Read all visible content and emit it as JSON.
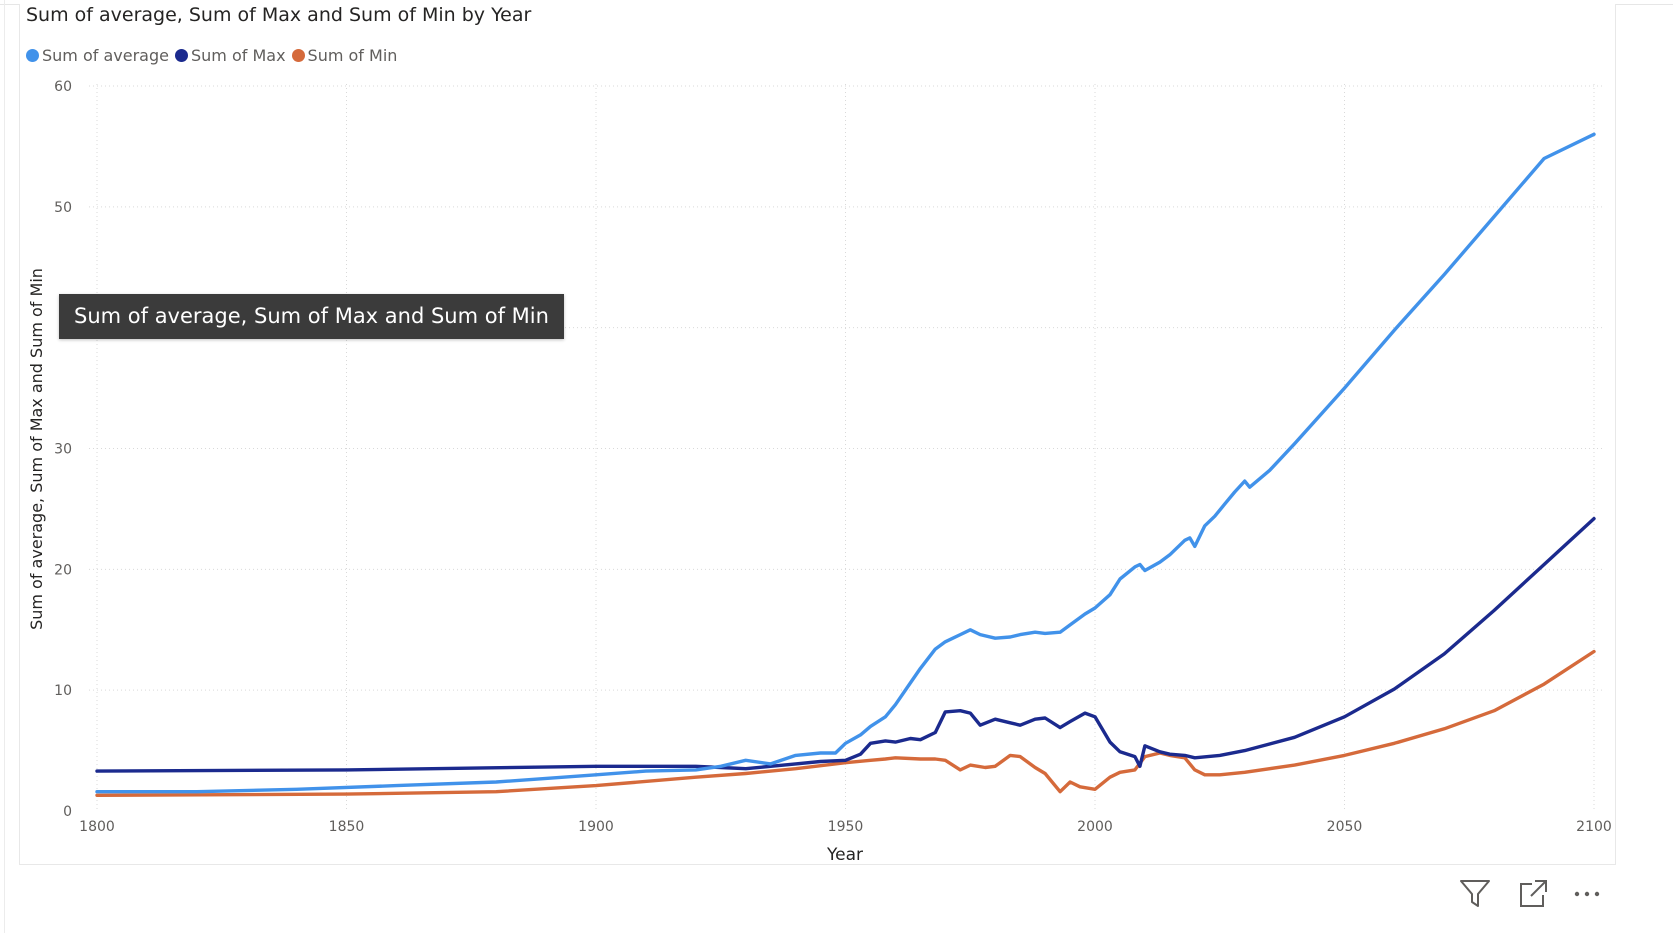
{
  "tooltip": {
    "text": "Sum of average, Sum of Max and Sum of Min"
  },
  "toolbar": {
    "icons": [
      "filter-icon",
      "focus-mode-icon",
      "more-options-icon"
    ]
  },
  "colors": {
    "average": "#4192ea",
    "max": "#1b2a8e",
    "min": "#d56a3b",
    "grid": "#d9d9d9",
    "axis_text": "#605e5c",
    "title_text": "#252423",
    "tooltip_bg": "#3b3b3b"
  },
  "chart_data": {
    "type": "line",
    "title": "Sum of average, Sum of Max and Sum of Min by Year",
    "xlabel": "Year",
    "ylabel": "Sum of average, Sum of Max and Sum of Min",
    "xlim": [
      1800,
      2100
    ],
    "ylim": [
      0,
      60
    ],
    "x_ticks": [
      1800,
      1850,
      1900,
      1950,
      2000,
      2050,
      2100
    ],
    "y_ticks": [
      0,
      10,
      20,
      30,
      40,
      50,
      60
    ],
    "y_tick_labels_shown": [
      "0",
      "10",
      "20",
      "30",
      "50",
      "60"
    ],
    "grid": true,
    "legend_position": "top-left",
    "series": [
      {
        "name": "Sum of average",
        "color": "#4192ea",
        "x": [
          1800,
          1820,
          1840,
          1860,
          1880,
          1890,
          1900,
          1910,
          1920,
          1925,
          1930,
          1935,
          1940,
          1945,
          1948,
          1950,
          1953,
          1955,
          1958,
          1960,
          1963,
          1965,
          1968,
          1970,
          1973,
          1975,
          1977,
          1980,
          1983,
          1985,
          1988,
          1990,
          1993,
          1995,
          1998,
          2000,
          2003,
          2005,
          2008,
          2009,
          2010,
          2013,
          2015,
          2018,
          2019,
          2020,
          2022,
          2024,
          2026,
          2028,
          2030,
          2031,
          2035,
          2040,
          2050,
          2060,
          2070,
          2080,
          2090,
          2100
        ],
        "values": [
          1.6,
          1.6,
          1.8,
          2.1,
          2.4,
          2.7,
          3.0,
          3.3,
          3.4,
          3.7,
          4.2,
          3.9,
          4.6,
          4.8,
          4.8,
          5.6,
          6.3,
          7.0,
          7.8,
          8.8,
          10.6,
          11.8,
          13.4,
          14.0,
          14.6,
          15.0,
          14.6,
          14.3,
          14.4,
          14.6,
          14.8,
          14.7,
          14.8,
          15.4,
          16.3,
          16.8,
          17.9,
          19.2,
          20.2,
          20.4,
          19.9,
          20.6,
          21.2,
          22.4,
          22.6,
          21.9,
          23.6,
          24.4,
          25.4,
          26.4,
          27.3,
          26.8,
          28.2,
          30.4,
          35.0,
          39.8,
          44.4,
          49.2,
          54.0,
          56.0
        ]
      },
      {
        "name": "Sum of Max",
        "color": "#1b2a8e",
        "x": [
          1800,
          1850,
          1900,
          1920,
          1925,
          1930,
          1935,
          1940,
          1945,
          1950,
          1953,
          1955,
          1958,
          1960,
          1963,
          1965,
          1968,
          1970,
          1973,
          1975,
          1977,
          1980,
          1983,
          1985,
          1988,
          1990,
          1993,
          1995,
          1998,
          2000,
          2003,
          2005,
          2008,
          2009,
          2010,
          2013,
          2015,
          2018,
          2020,
          2025,
          2030,
          2040,
          2050,
          2060,
          2070,
          2080,
          2090,
          2100
        ],
        "values": [
          3.3,
          3.4,
          3.7,
          3.7,
          3.6,
          3.5,
          3.7,
          3.9,
          4.1,
          4.2,
          4.7,
          5.6,
          5.8,
          5.7,
          6.0,
          5.9,
          6.5,
          8.2,
          8.3,
          8.1,
          7.1,
          7.6,
          7.3,
          7.1,
          7.6,
          7.7,
          6.9,
          7.4,
          8.1,
          7.8,
          5.7,
          4.9,
          4.5,
          3.7,
          5.4,
          4.9,
          4.7,
          4.6,
          4.4,
          4.6,
          5.0,
          6.1,
          7.8,
          10.1,
          13.0,
          16.6,
          20.4,
          24.2
        ]
      },
      {
        "name": "Sum of Min",
        "color": "#d56a3b",
        "x": [
          1800,
          1850,
          1880,
          1900,
          1920,
          1930,
          1940,
          1950,
          1955,
          1958,
          1960,
          1965,
          1968,
          1970,
          1973,
          1975,
          1978,
          1980,
          1983,
          1985,
          1988,
          1990,
          1993,
          1995,
          1997,
          2000,
          2003,
          2005,
          2008,
          2010,
          2013,
          2015,
          2018,
          2020,
          2022,
          2025,
          2030,
          2040,
          2050,
          2060,
          2070,
          2080,
          2090,
          2100
        ],
        "values": [
          1.3,
          1.4,
          1.6,
          2.1,
          2.8,
          3.1,
          3.5,
          4.0,
          4.2,
          4.3,
          4.4,
          4.3,
          4.3,
          4.2,
          3.4,
          3.8,
          3.6,
          3.7,
          4.6,
          4.5,
          3.6,
          3.1,
          1.6,
          2.4,
          2.0,
          1.8,
          2.8,
          3.2,
          3.4,
          4.5,
          4.8,
          4.6,
          4.4,
          3.4,
          3.0,
          3.0,
          3.2,
          3.8,
          4.6,
          5.6,
          6.8,
          8.3,
          10.5,
          13.2
        ]
      }
    ]
  }
}
